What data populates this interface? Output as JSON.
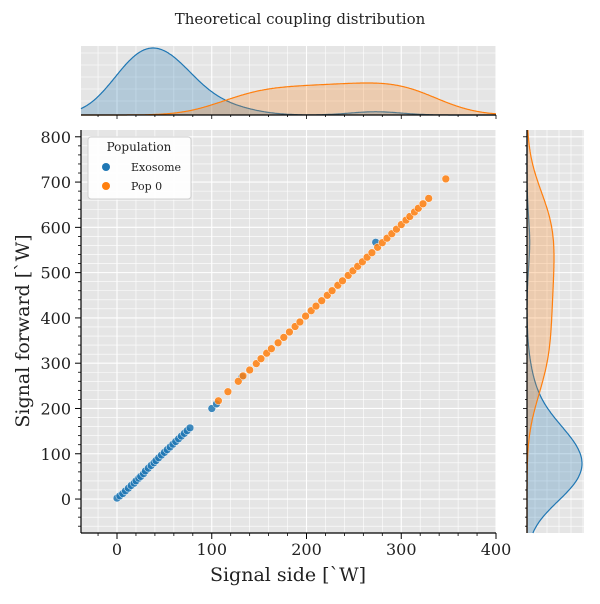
{
  "chart_data": {
    "type": "scatter",
    "title": "Theoretical coupling distribution",
    "xlabel": "Signal side [`W]",
    "ylabel": "Signal forward [`W]",
    "xlim": [
      -38,
      400
    ],
    "ylim": [
      -75,
      815
    ],
    "x_ticks": [
      0,
      100,
      200,
      300,
      400
    ],
    "y_ticks": [
      0,
      100,
      200,
      300,
      400,
      500,
      600,
      700,
      800
    ],
    "grid": true,
    "legend": {
      "title": "Population",
      "placement": "top-left"
    },
    "marginals": {
      "top": "kde of x per series",
      "right": "kde of y per series"
    },
    "series": [
      {
        "name": "Exosome",
        "color": "#1f77b4",
        "x": [
          0,
          3,
          6,
          9,
          12,
          15,
          18,
          20,
          23,
          25,
          28,
          30,
          33,
          36,
          39,
          41,
          44,
          47,
          50,
          53,
          56,
          59,
          62,
          65,
          68,
          71,
          74,
          77,
          100,
          105,
          132,
          273
        ],
        "y": [
          2,
          7,
          12,
          18,
          24,
          30,
          35,
          40,
          46,
          50,
          56,
          62,
          68,
          74,
          80,
          85,
          91,
          97,
          103,
          109,
          115,
          121,
          127,
          133,
          139,
          145,
          151,
          157,
          200,
          210,
          270,
          567
        ]
      },
      {
        "name": "Pop 0",
        "color": "#ff7f0e",
        "x": [
          107,
          117,
          128,
          133,
          140,
          147,
          152,
          158,
          163,
          170,
          176,
          182,
          188,
          193,
          199,
          205,
          210,
          216,
          222,
          227,
          233,
          238,
          244,
          249,
          254,
          259,
          264,
          269,
          275,
          280,
          285,
          290,
          295,
          300,
          305,
          309,
          314,
          318,
          323,
          329,
          347
        ],
        "y": [
          217,
          237,
          260,
          272,
          285,
          299,
          310,
          322,
          332,
          345,
          357,
          369,
          381,
          391,
          404,
          416,
          426,
          438,
          450,
          460,
          472,
          482,
          494,
          504,
          514,
          524,
          534,
          544,
          556,
          566,
          576,
          586,
          596,
          606,
          616,
          624,
          634,
          642,
          652,
          664,
          707
        ]
      }
    ]
  }
}
